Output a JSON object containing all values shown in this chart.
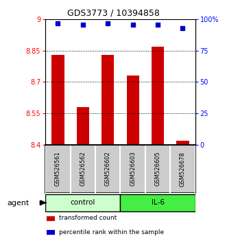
{
  "title": "GDS3773 / 10394858",
  "samples": [
    "GSM526561",
    "GSM526562",
    "GSM526602",
    "GSM526603",
    "GSM526605",
    "GSM526678"
  ],
  "bar_values": [
    8.83,
    8.58,
    8.83,
    8.73,
    8.87,
    8.42
  ],
  "percentile_values": [
    97,
    96,
    97,
    96,
    96,
    93
  ],
  "ylim_left": [
    8.4,
    9.0
  ],
  "ylim_right": [
    0,
    100
  ],
  "yticks_left": [
    8.4,
    8.55,
    8.7,
    8.85,
    9.0
  ],
  "ytick_labels_left": [
    "8.4",
    "8.55",
    "8.7",
    "8.85",
    "9"
  ],
  "yticks_right": [
    0,
    25,
    50,
    75,
    100
  ],
  "ytick_labels_right": [
    "0",
    "25",
    "50",
    "75",
    "100%"
  ],
  "hlines": [
    8.55,
    8.7,
    8.85
  ],
  "bar_color": "#cc0000",
  "dot_color": "#0000cc",
  "bar_width": 0.5,
  "groups": [
    {
      "label": "control",
      "indices": [
        0,
        1,
        2
      ],
      "color": "#ccffcc"
    },
    {
      "label": "IL-6",
      "indices": [
        3,
        4,
        5
      ],
      "color": "#44ee44"
    }
  ],
  "agent_label": "agent",
  "legend_items": [
    {
      "label": "transformed count",
      "color": "#cc0000"
    },
    {
      "label": "percentile rank within the sample",
      "color": "#0000cc"
    }
  ],
  "background_color": "#ffffff",
  "plot_bg_color": "#ffffff",
  "sample_box_color": "#cccccc"
}
